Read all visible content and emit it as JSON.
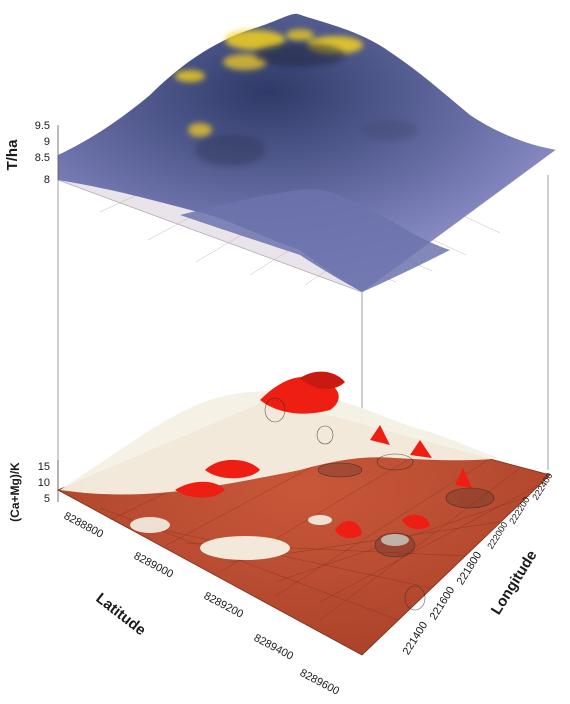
{
  "chart_data": {
    "type": "surface3d",
    "panels": [
      {
        "name": "upper",
        "zlabel": "T/ha",
        "zticks": [
          "8",
          "8.5",
          "9",
          "9.5"
        ],
        "colors": {
          "low": "#8c8cc8",
          "mid": "#3d4670",
          "high": "#f2d21c"
        }
      },
      {
        "name": "lower",
        "zlabel": "(Ca+Mg)/K",
        "zticks": [
          "5",
          "10",
          "15"
        ],
        "colors": {
          "base": "#b5472a",
          "grid": "#7a2a18",
          "peak": "#ef1e12",
          "high": "#f4f1e4"
        }
      }
    ],
    "xlabel": "Latitude",
    "xticks": [
      "8288800",
      "8289000",
      "8289200",
      "8289400",
      "8289600"
    ],
    "ylabel": "Longitude",
    "yticks": [
      "221400",
      "221600",
      "221800",
      "222000",
      "222200",
      "222400"
    ]
  }
}
